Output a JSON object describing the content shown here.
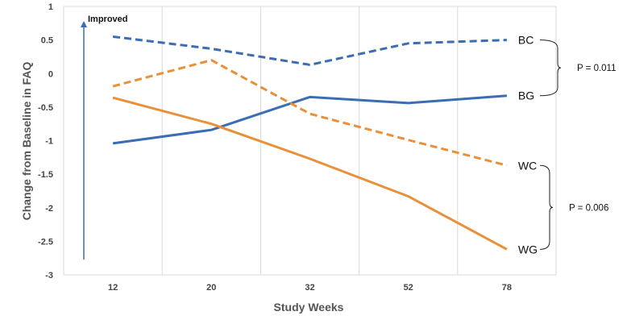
{
  "chart_data": {
    "type": "line",
    "title": "",
    "xlabel": "Study Weeks",
    "ylabel": "Change from Baseline in FAQ",
    "categories": [
      "12",
      "20",
      "32",
      "52",
      "78"
    ],
    "ylim": [
      -3,
      1
    ],
    "yticks": [
      "1",
      "0.5",
      "0",
      "-0.5",
      "-1",
      "-1.5",
      "-2",
      "-2.5",
      "-3"
    ],
    "grid": "vertical",
    "annotation": "Improved",
    "series": [
      {
        "name": "BC",
        "values": [
          0.55,
          0.37,
          0.13,
          0.45,
          0.5
        ],
        "color": "#3a6db1",
        "dashed": true
      },
      {
        "name": "BG",
        "values": [
          -1.04,
          -0.84,
          -0.35,
          -0.44,
          -0.33
        ],
        "color": "#3a6db1",
        "dashed": false
      },
      {
        "name": "WC",
        "values": [
          -0.19,
          0.2,
          -0.6,
          -0.99,
          -1.37
        ],
        "color": "#e8913a",
        "dashed": true
      },
      {
        "name": "WG",
        "values": [
          -0.36,
          -0.75,
          -1.27,
          -1.83,
          -2.62
        ],
        "color": "#e8913a",
        "dashed": false
      }
    ],
    "comparisons": [
      {
        "label": "P = 0.011",
        "between": [
          "BC",
          "BG"
        ]
      },
      {
        "label": "P = 0.006",
        "between": [
          "WC",
          "WG"
        ]
      }
    ]
  }
}
